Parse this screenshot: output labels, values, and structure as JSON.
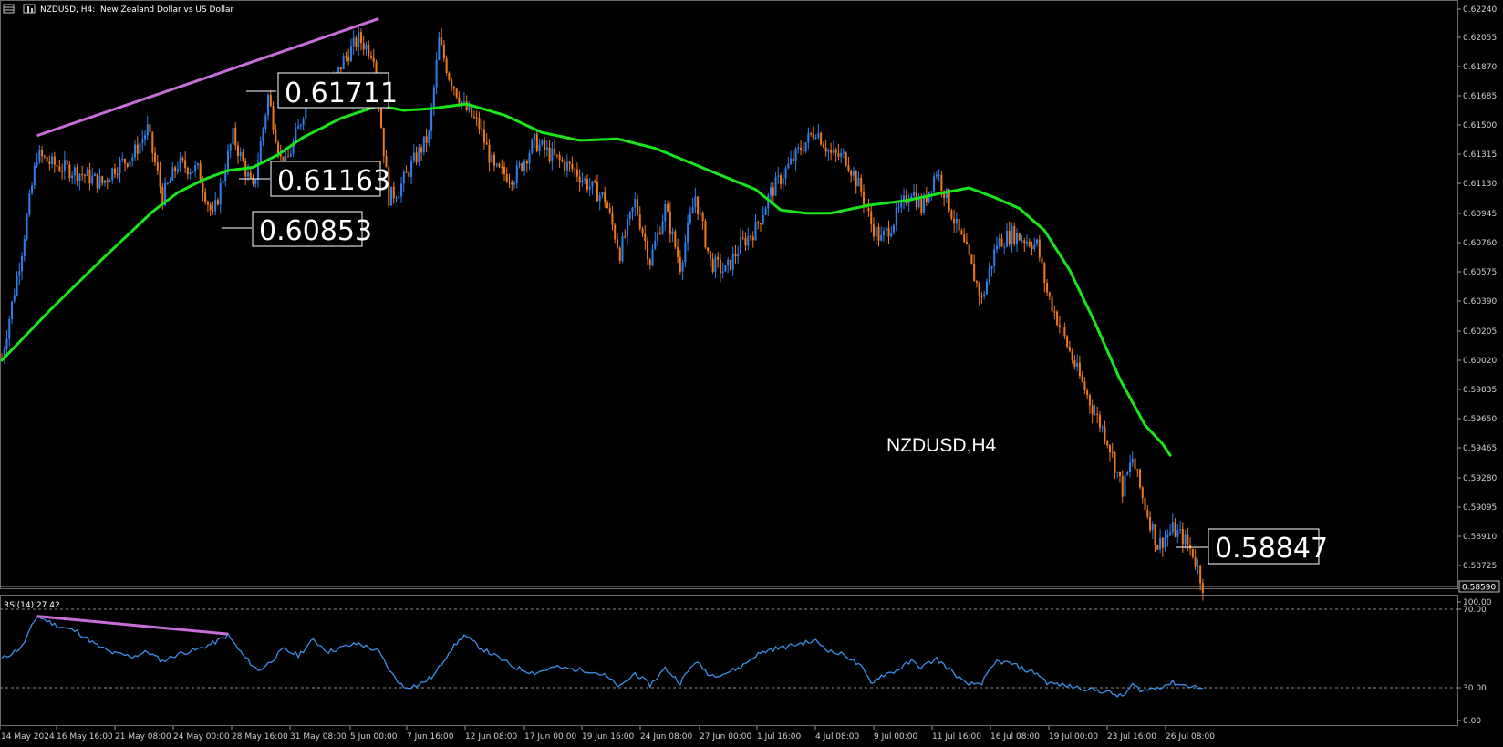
{
  "header": {
    "symbol_label": "NZDUSD, H4:",
    "description": "New Zealand Dollar vs US Dollar"
  },
  "watermark": "NZDUSD,H4",
  "colors": {
    "bull": "#2f80ed",
    "bear": "#f07a1a",
    "ma": "#19e619",
    "trendline": "#c86ed8",
    "rsi": "#3b8fe8"
  },
  "chart_data": [
    {
      "type": "candlestick",
      "timeframe": "H4",
      "ylim": [
        0.5859,
        0.6224
      ],
      "y_ticks": [
        "0.62240",
        "0.62055",
        "0.61870",
        "0.61685",
        "0.61500",
        "0.61315",
        "0.61130",
        "0.60945",
        "0.60760",
        "0.60575",
        "0.60390",
        "0.60205",
        "0.60020",
        "0.59835",
        "0.59650",
        "0.59465",
        "0.59280",
        "0.59095",
        "0.58910",
        "0.58725"
      ],
      "x_ticks": [
        "14 May 2024",
        "16 May 16:00",
        "21 May 08:00",
        "24 May 00:00",
        "28 May 16:00",
        "31 May 08:00",
        "5 Jun 00:00",
        "7 Jun 16:00",
        "12 Jun 08:00",
        "17 Jun 00:00",
        "19 Jun 16:00",
        "24 Jun 08:00",
        "27 Jun 00:00",
        "1 Jul 16:00",
        "4 Jul 08:00",
        "9 Jul 00:00",
        "11 Jul 16:00",
        "16 Jul 08:00",
        "19 Jul 00:00",
        "23 Jul 16:00",
        "26 Jul 08:00"
      ],
      "current_price": "0.58590",
      "price_anchors": [
        [
          0,
          0.6003
        ],
        [
          8,
          0.6072
        ],
        [
          14,
          0.6132
        ],
        [
          20,
          0.6126
        ],
        [
          30,
          0.6121
        ],
        [
          40,
          0.6114
        ],
        [
          45,
          0.6124
        ],
        [
          52,
          0.6131
        ],
        [
          58,
          0.6148
        ],
        [
          64,
          0.6105
        ],
        [
          70,
          0.6126
        ],
        [
          78,
          0.6122
        ],
        [
          84,
          0.6092
        ],
        [
          92,
          0.6144
        ],
        [
          100,
          0.6109
        ],
        [
          106,
          0.6169
        ],
        [
          112,
          0.6121
        ],
        [
          118,
          0.6148
        ],
        [
          124,
          0.6182
        ],
        [
          130,
          0.617
        ],
        [
          136,
          0.6192
        ],
        [
          142,
          0.6205
        ],
        [
          148,
          0.6196
        ],
        [
          152,
          0.6135
        ],
        [
          154,
          0.6105
        ],
        [
          158,
          0.611
        ],
        [
          164,
          0.6128
        ],
        [
          170,
          0.6144
        ],
        [
          174,
          0.6204
        ],
        [
          178,
          0.6182
        ],
        [
          184,
          0.6162
        ],
        [
          190,
          0.615
        ],
        [
          196,
          0.6122
        ],
        [
          204,
          0.6118
        ],
        [
          212,
          0.614
        ],
        [
          220,
          0.613
        ],
        [
          228,
          0.6122
        ],
        [
          234,
          0.6112
        ],
        [
          240,
          0.6104
        ],
        [
          246,
          0.607
        ],
        [
          252,
          0.6102
        ],
        [
          258,
          0.6065
        ],
        [
          264,
          0.6098
        ],
        [
          270,
          0.6062
        ],
        [
          276,
          0.6106
        ],
        [
          282,
          0.6064
        ],
        [
          288,
          0.6058
        ],
        [
          294,
          0.6075
        ],
        [
          300,
          0.6085
        ],
        [
          306,
          0.6108
        ],
        [
          312,
          0.6122
        ],
        [
          318,
          0.6136
        ],
        [
          324,
          0.6148
        ],
        [
          330,
          0.6132
        ],
        [
          336,
          0.613
        ],
        [
          342,
          0.6109
        ],
        [
          346,
          0.6088
        ],
        [
          350,
          0.6078
        ],
        [
          356,
          0.6093
        ],
        [
          362,
          0.611
        ],
        [
          366,
          0.6098
        ],
        [
          372,
          0.6122
        ],
        [
          376,
          0.6105
        ],
        [
          380,
          0.6086
        ],
        [
          384,
          0.607
        ],
        [
          390,
          0.604
        ],
        [
          396,
          0.6076
        ],
        [
          402,
          0.6082
        ],
        [
          408,
          0.6078
        ],
        [
          412,
          0.6075
        ],
        [
          416,
          0.6045
        ],
        [
          422,
          0.602
        ],
        [
          428,
          0.5995
        ],
        [
          434,
          0.5972
        ],
        [
          440,
          0.5952
        ],
        [
          446,
          0.592
        ],
        [
          450,
          0.594
        ],
        [
          454,
          0.5915
        ],
        [
          460,
          0.5885
        ],
        [
          466,
          0.5895
        ],
        [
          470,
          0.589
        ],
        [
          474,
          0.588
        ],
        [
          478,
          0.586
        ]
      ],
      "moving_average_anchors": [
        [
          0,
          0.6002
        ],
        [
          20,
          0.6035
        ],
        [
          40,
          0.6066
        ],
        [
          60,
          0.6096
        ],
        [
          70,
          0.6108
        ],
        [
          80,
          0.6116
        ],
        [
          90,
          0.6122
        ],
        [
          100,
          0.6124
        ],
        [
          110,
          0.6132
        ],
        [
          120,
          0.6143
        ],
        [
          135,
          0.6155
        ],
        [
          150,
          0.6163
        ],
        [
          160,
          0.616
        ],
        [
          170,
          0.6161
        ],
        [
          185,
          0.6164
        ],
        [
          200,
          0.6157
        ],
        [
          215,
          0.6146
        ],
        [
          230,
          0.6141
        ],
        [
          245,
          0.6142
        ],
        [
          260,
          0.6136
        ],
        [
          280,
          0.6123
        ],
        [
          300,
          0.611
        ],
        [
          310,
          0.6097
        ],
        [
          320,
          0.6095
        ],
        [
          330,
          0.6095
        ],
        [
          345,
          0.61
        ],
        [
          360,
          0.6103
        ],
        [
          375,
          0.6108
        ],
        [
          385,
          0.6111
        ],
        [
          395,
          0.6105
        ],
        [
          405,
          0.6098
        ],
        [
          415,
          0.6084
        ],
        [
          425,
          0.6059
        ],
        [
          435,
          0.6026
        ],
        [
          445,
          0.599
        ],
        [
          455,
          0.5961
        ],
        [
          462,
          0.5949
        ],
        [
          465,
          0.5942
        ]
      ],
      "price_labels": [
        "0.61711",
        "0.61163",
        "0.60853",
        "0.58847"
      ],
      "trendline": {
        "from": [
          14,
          0.6144
        ],
        "to": [
          150,
          0.6218
        ]
      }
    },
    {
      "type": "line",
      "indicator_label": "RSI(14) 27.42",
      "ylim": [
        0,
        100
      ],
      "y_ticks": [
        "100.00",
        "70.00",
        "30.00",
        "0.00"
      ],
      "levels": [
        70,
        30
      ],
      "rsi_anchors": [
        [
          0,
          52
        ],
        [
          8,
          62
        ],
        [
          14,
          88
        ],
        [
          22,
          80
        ],
        [
          30,
          75
        ],
        [
          38,
          63
        ],
        [
          44,
          57
        ],
        [
          52,
          54
        ],
        [
          58,
          58
        ],
        [
          64,
          50
        ],
        [
          70,
          56
        ],
        [
          78,
          60
        ],
        [
          84,
          65
        ],
        [
          90,
          72
        ],
        [
          96,
          55
        ],
        [
          102,
          42
        ],
        [
          106,
          48
        ],
        [
          112,
          60
        ],
        [
          118,
          55
        ],
        [
          124,
          68
        ],
        [
          130,
          58
        ],
        [
          136,
          62
        ],
        [
          142,
          65
        ],
        [
          150,
          58
        ],
        [
          155,
          40
        ],
        [
          160,
          28
        ],
        [
          166,
          30
        ],
        [
          172,
          38
        ],
        [
          178,
          58
        ],
        [
          184,
          72
        ],
        [
          190,
          62
        ],
        [
          196,
          55
        ],
        [
          204,
          45
        ],
        [
          212,
          40
        ],
        [
          220,
          45
        ],
        [
          228,
          43
        ],
        [
          234,
          42
        ],
        [
          240,
          38
        ],
        [
          246,
          28
        ],
        [
          252,
          40
        ],
        [
          258,
          30
        ],
        [
          264,
          44
        ],
        [
          270,
          32
        ],
        [
          276,
          50
        ],
        [
          282,
          38
        ],
        [
          288,
          40
        ],
        [
          294,
          45
        ],
        [
          300,
          55
        ],
        [
          306,
          60
        ],
        [
          312,
          62
        ],
        [
          318,
          65
        ],
        [
          324,
          67
        ],
        [
          330,
          58
        ],
        [
          336,
          55
        ],
        [
          342,
          45
        ],
        [
          346,
          32
        ],
        [
          350,
          38
        ],
        [
          356,
          42
        ],
        [
          362,
          50
        ],
        [
          366,
          45
        ],
        [
          372,
          52
        ],
        [
          376,
          45
        ],
        [
          380,
          38
        ],
        [
          384,
          30
        ],
        [
          390,
          32
        ],
        [
          396,
          50
        ],
        [
          402,
          48
        ],
        [
          408,
          42
        ],
        [
          412,
          40
        ],
        [
          416,
          32
        ],
        [
          422,
          30
        ],
        [
          428,
          28
        ],
        [
          434,
          26
        ],
        [
          440,
          24
        ],
        [
          446,
          20
        ],
        [
          450,
          30
        ],
        [
          454,
          25
        ],
        [
          460,
          28
        ],
        [
          466,
          32
        ],
        [
          470,
          30
        ],
        [
          474,
          29
        ],
        [
          478,
          27
        ]
      ],
      "trendline": {
        "from": [
          14,
          88
        ],
        "to": [
          90,
          73
        ]
      }
    }
  ]
}
